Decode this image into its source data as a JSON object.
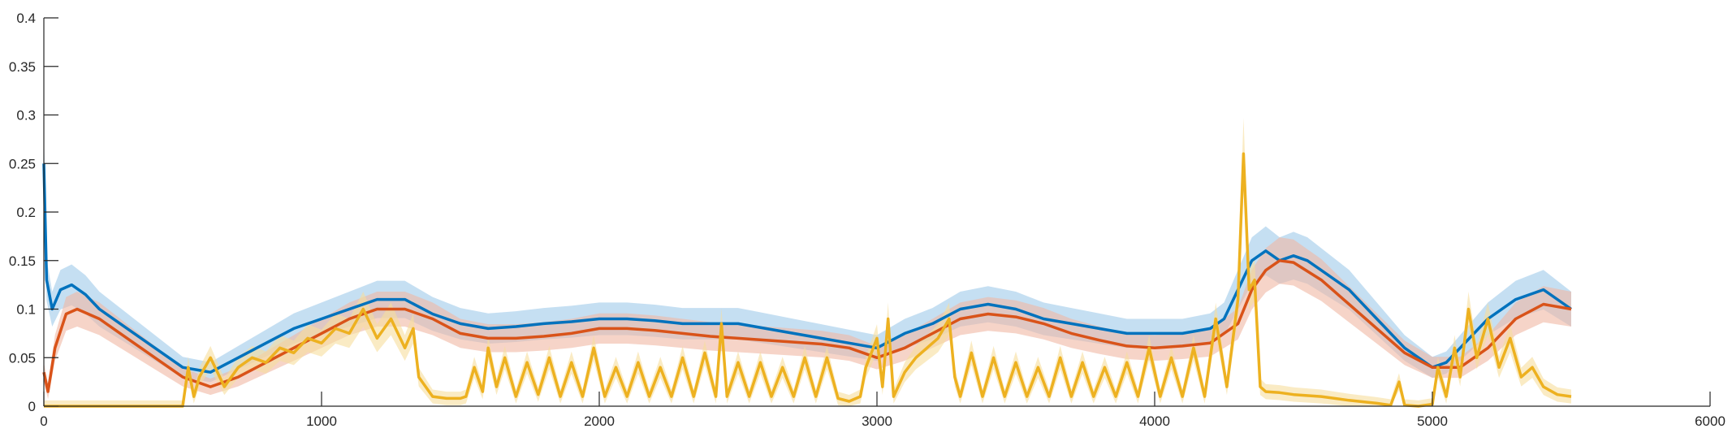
{
  "chart_data": {
    "type": "line",
    "title": "",
    "xlabel": "",
    "ylabel": "",
    "xlim": [
      0,
      6000
    ],
    "ylim": [
      0,
      0.4
    ],
    "grid": false,
    "legend": "none",
    "x_ticks": [
      "0",
      "1000",
      "2000",
      "3000",
      "4000",
      "5000",
      "6000"
    ],
    "y_ticks": [
      "0",
      "0.05",
      "0.1",
      "0.15",
      "0.2",
      "0.25",
      "0.3",
      "0.35",
      "0.4"
    ],
    "x_tick_values": [
      0,
      1000,
      2000,
      3000,
      4000,
      5000,
      6000
    ],
    "y_tick_values": [
      0,
      0.05,
      0.1,
      0.15,
      0.2,
      0.25,
      0.3,
      0.35,
      0.4
    ],
    "series": [
      {
        "color": "#0072BD",
        "band_color": "#9ec9ea",
        "x": [
          0,
          10,
          30,
          60,
          100,
          150,
          200,
          300,
          400,
          500,
          600,
          700,
          800,
          900,
          1000,
          1100,
          1200,
          1300,
          1400,
          1500,
          1600,
          1700,
          1800,
          1900,
          2000,
          2100,
          2200,
          2300,
          2400,
          2500,
          2600,
          2700,
          2800,
          2900,
          3000,
          3100,
          3200,
          3300,
          3400,
          3500,
          3600,
          3700,
          3800,
          3900,
          4000,
          4100,
          4200,
          4250,
          4300,
          4350,
          4400,
          4450,
          4500,
          4550,
          4600,
          4700,
          4800,
          4900,
          5000,
          5050,
          5100,
          5200,
          5300,
          5400,
          5500
        ],
        "y": [
          0.25,
          0.13,
          0.1,
          0.12,
          0.125,
          0.115,
          0.1,
          0.08,
          0.06,
          0.04,
          0.035,
          0.05,
          0.065,
          0.08,
          0.09,
          0.1,
          0.11,
          0.11,
          0.095,
          0.085,
          0.08,
          0.082,
          0.085,
          0.087,
          0.09,
          0.09,
          0.088,
          0.085,
          0.085,
          0.085,
          0.08,
          0.075,
          0.07,
          0.065,
          0.06,
          0.075,
          0.085,
          0.1,
          0.105,
          0.1,
          0.09,
          0.085,
          0.08,
          0.075,
          0.075,
          0.075,
          0.08,
          0.09,
          0.12,
          0.15,
          0.16,
          0.15,
          0.155,
          0.15,
          0.14,
          0.12,
          0.09,
          0.06,
          0.04,
          0.045,
          0.06,
          0.09,
          0.11,
          0.12,
          0.1
        ]
      },
      {
        "color": "#D95319",
        "band_color": "#f0b8a4",
        "x": [
          0,
          15,
          40,
          80,
          120,
          200,
          300,
          400,
          500,
          600,
          700,
          800,
          900,
          1000,
          1100,
          1200,
          1300,
          1400,
          1500,
          1600,
          1700,
          1800,
          1900,
          2000,
          2100,
          2200,
          2300,
          2400,
          2500,
          2600,
          2700,
          2800,
          2900,
          3000,
          3100,
          3200,
          3300,
          3400,
          3500,
          3600,
          3700,
          3800,
          3900,
          4000,
          4100,
          4200,
          4300,
          4350,
          4400,
          4450,
          4500,
          4600,
          4700,
          4800,
          4900,
          5000,
          5100,
          5200,
          5300,
          5400,
          5500
        ],
        "y": [
          0.035,
          0.015,
          0.06,
          0.095,
          0.1,
          0.09,
          0.07,
          0.05,
          0.03,
          0.02,
          0.03,
          0.045,
          0.06,
          0.075,
          0.09,
          0.1,
          0.1,
          0.09,
          0.075,
          0.07,
          0.07,
          0.072,
          0.075,
          0.08,
          0.08,
          0.078,
          0.075,
          0.072,
          0.07,
          0.068,
          0.066,
          0.064,
          0.06,
          0.05,
          0.06,
          0.075,
          0.09,
          0.095,
          0.092,
          0.085,
          0.075,
          0.068,
          0.062,
          0.06,
          0.062,
          0.065,
          0.085,
          0.12,
          0.14,
          0.15,
          0.148,
          0.13,
          0.105,
          0.08,
          0.055,
          0.04,
          0.04,
          0.06,
          0.09,
          0.105,
          0.1
        ]
      },
      {
        "color": "#EDB120",
        "band_color": "#f7dd9c",
        "x": [
          0,
          100,
          200,
          300,
          400,
          500,
          520,
          540,
          560,
          600,
          650,
          700,
          750,
          800,
          850,
          900,
          950,
          1000,
          1050,
          1100,
          1150,
          1200,
          1250,
          1300,
          1330,
          1350,
          1400,
          1450,
          1500,
          1520,
          1550,
          1580,
          1600,
          1630,
          1660,
          1700,
          1740,
          1780,
          1820,
          1860,
          1900,
          1940,
          1980,
          2020,
          2060,
          2100,
          2140,
          2180,
          2220,
          2260,
          2300,
          2340,
          2380,
          2420,
          2440,
          2460,
          2500,
          2540,
          2580,
          2620,
          2660,
          2700,
          2740,
          2780,
          2820,
          2860,
          2900,
          2940,
          2960,
          3000,
          3020,
          3040,
          3060,
          3100,
          3140,
          3180,
          3220,
          3260,
          3280,
          3300,
          3340,
          3380,
          3420,
          3460,
          3500,
          3540,
          3580,
          3620,
          3660,
          3700,
          3740,
          3780,
          3820,
          3860,
          3900,
          3940,
          3980,
          4020,
          4060,
          4100,
          4140,
          4180,
          4220,
          4260,
          4300,
          4320,
          4340,
          4360,
          4380,
          4400,
          4450,
          4500,
          4600,
          4700,
          4800,
          4850,
          4880,
          4900,
          4950,
          5000,
          5020,
          5050,
          5080,
          5100,
          5130,
          5160,
          5200,
          5240,
          5280,
          5320,
          5360,
          5400,
          5450,
          5500
        ],
        "y": [
          0,
          0,
          0,
          0,
          0,
          0,
          0.04,
          0.01,
          0.03,
          0.05,
          0.02,
          0.04,
          0.05,
          0.045,
          0.06,
          0.055,
          0.07,
          0.065,
          0.08,
          0.075,
          0.1,
          0.07,
          0.09,
          0.06,
          0.08,
          0.03,
          0.01,
          0.008,
          0.008,
          0.01,
          0.04,
          0.015,
          0.06,
          0.02,
          0.05,
          0.01,
          0.045,
          0.012,
          0.05,
          0.01,
          0.045,
          0.01,
          0.06,
          0.01,
          0.04,
          0.01,
          0.045,
          0.01,
          0.04,
          0.01,
          0.05,
          0.01,
          0.055,
          0.01,
          0.085,
          0.01,
          0.045,
          0.01,
          0.045,
          0.01,
          0.04,
          0.01,
          0.05,
          0.01,
          0.05,
          0.008,
          0.005,
          0.01,
          0.04,
          0.07,
          0.02,
          0.09,
          0.01,
          0.035,
          0.05,
          0.06,
          0.07,
          0.09,
          0.03,
          0.01,
          0.055,
          0.01,
          0.05,
          0.01,
          0.045,
          0.01,
          0.04,
          0.01,
          0.05,
          0.01,
          0.045,
          0.01,
          0.04,
          0.01,
          0.045,
          0.01,
          0.06,
          0.01,
          0.05,
          0.01,
          0.06,
          0.01,
          0.09,
          0.02,
          0.11,
          0.26,
          0.12,
          0.13,
          0.02,
          0.015,
          0.014,
          0.012,
          0.01,
          0.006,
          0.003,
          0.001,
          0.025,
          0.001,
          0.0,
          0.002,
          0.04,
          0.01,
          0.06,
          0.03,
          0.1,
          0.05,
          0.09,
          0.04,
          0.07,
          0.03,
          0.04,
          0.02,
          0.012,
          0.01
        ]
      }
    ]
  }
}
